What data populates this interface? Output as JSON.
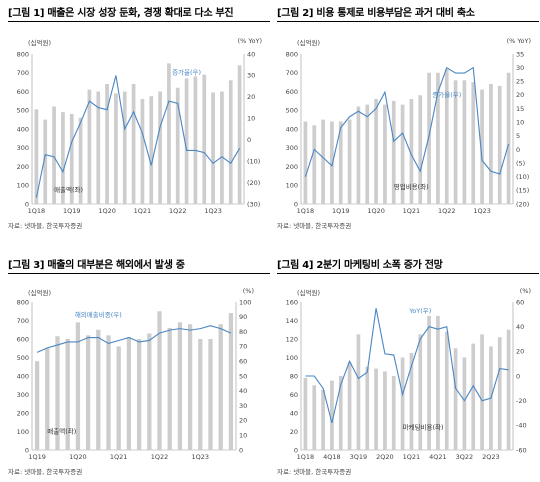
{
  "chart_data": [
    {
      "type": "bar",
      "title": "[그림 1] 매출은 시장 성장 둔화, 경쟁 확대로 다소 부진",
      "left_unit": "(십억원)",
      "right_unit": "(% YoY)",
      "categories": [
        "1Q18",
        "2Q18",
        "3Q18",
        "4Q18",
        "1Q19",
        "2Q19",
        "3Q19",
        "4Q19",
        "1Q20",
        "2Q20",
        "3Q20",
        "4Q20",
        "1Q21",
        "2Q21",
        "3Q21",
        "4Q21",
        "1Q22",
        "2Q22",
        "3Q22",
        "4Q22",
        "1Q23",
        "2Q23",
        "3Q23",
        "4Q23"
      ],
      "x_tick_labels": [
        "1Q18",
        "1Q19",
        "1Q20",
        "1Q21",
        "1Q22",
        "1Q23"
      ],
      "x_tick_index": [
        0,
        4,
        8,
        12,
        16,
        20
      ],
      "ylim_left": [
        0,
        800
      ],
      "yticks_left": [
        0,
        100,
        200,
        300,
        400,
        500,
        600,
        700,
        800
      ],
      "ylim_right": [
        -30,
        40
      ],
      "yticks_right_values": [
        -30,
        -20,
        -10,
        0,
        10,
        20,
        30,
        40
      ],
      "yticks_right_labels": [
        "(30)",
        "(20)",
        "(10)",
        "0",
        "10",
        "20",
        "30",
        "40"
      ],
      "series": [
        {
          "name": "매출액(좌)",
          "axis": "left",
          "kind": "bar",
          "values": [
            505,
            450,
            520,
            490,
            480,
            460,
            610,
            600,
            640,
            590,
            600,
            640,
            560,
            575,
            600,
            750,
            620,
            670,
            680,
            690,
            595,
            600,
            660,
            740
          ]
        },
        {
          "name": "증가율(우)",
          "axis": "right",
          "kind": "line",
          "values": [
            -27,
            -7,
            -8,
            -15,
            -1,
            8,
            18,
            15,
            14,
            30,
            5,
            13,
            3,
            -12,
            6,
            18,
            17,
            -5,
            -5,
            -6,
            -11,
            -8,
            -11,
            -4
          ]
        }
      ],
      "series_label_positions": {
        "bar": [
          2,
          65
        ],
        "line": [
          17,
          690
        ]
      },
      "source": "자료: 넷마블, 한국투자증권"
    },
    {
      "type": "bar",
      "title": "[그림 2] 비용 통제로 비용부담은 과거 대비 축소",
      "left_unit": "(십억원)",
      "right_unit": "(% YoY)",
      "categories": [
        "1Q18",
        "2Q18",
        "3Q18",
        "4Q18",
        "1Q19",
        "2Q19",
        "3Q19",
        "4Q19",
        "1Q20",
        "2Q20",
        "3Q20",
        "4Q20",
        "1Q21",
        "2Q21",
        "3Q21",
        "4Q21",
        "1Q22",
        "2Q22",
        "3Q22",
        "4Q22",
        "1Q23",
        "2Q23",
        "3Q23",
        "4Q23"
      ],
      "x_tick_labels": [
        "1Q18",
        "1Q19",
        "1Q20",
        "1Q21",
        "1Q22",
        "1Q23"
      ],
      "x_tick_index": [
        0,
        4,
        8,
        12,
        16,
        20
      ],
      "ylim_left": [
        0,
        800
      ],
      "yticks_left": [
        0,
        100,
        200,
        300,
        400,
        500,
        600,
        700,
        800
      ],
      "ylim_right": [
        -20,
        35
      ],
      "yticks_right_values": [
        -20,
        -15,
        -10,
        -5,
        0,
        5,
        10,
        15,
        20,
        25,
        30,
        35
      ],
      "yticks_right_labels": [
        "(20)",
        "(15)",
        "(10)",
        "(5)",
        "0",
        "5",
        "10",
        "15",
        "20",
        "25",
        "30",
        "35"
      ],
      "series": [
        {
          "name": "영업비용(좌)",
          "axis": "left",
          "kind": "bar",
          "values": [
            440,
            420,
            450,
            440,
            440,
            450,
            520,
            530,
            560,
            530,
            550,
            530,
            560,
            580,
            700,
            700,
            720,
            660,
            660,
            650,
            610,
            640,
            630,
            700
          ]
        },
        {
          "name": "증가율(우)",
          "axis": "right",
          "kind": "line",
          "values": [
            -10,
            0,
            -3,
            -6,
            8,
            12,
            14,
            12,
            15,
            21,
            3,
            6,
            -2,
            -8,
            5,
            21,
            30,
            28,
            28,
            30,
            -4,
            -8,
            -9,
            2
          ]
        }
      ],
      "series_label_positions": {
        "bar": [
          10,
          80
        ],
        "line": [
          16,
          570
        ]
      },
      "source": "자료: 넷마블, 한국투자증권"
    },
    {
      "type": "bar",
      "title": "[그림 3] 매출의 대부분은 해외에서 발생 중",
      "left_unit": "(십억원)",
      "right_unit": "(%)",
      "categories": [
        "1Q19",
        "2Q19",
        "3Q19",
        "4Q19",
        "1Q20",
        "2Q20",
        "3Q20",
        "4Q20",
        "1Q21",
        "2Q21",
        "3Q21",
        "4Q21",
        "1Q22",
        "2Q22",
        "3Q22",
        "4Q22",
        "1Q23",
        "2Q23",
        "3Q23",
        "4Q23"
      ],
      "x_tick_labels": [
        "1Q19",
        "1Q20",
        "1Q21",
        "1Q22",
        "1Q23"
      ],
      "x_tick_index": [
        0,
        4,
        8,
        12,
        16
      ],
      "ylim_left": [
        0,
        800
      ],
      "yticks_left": [
        0,
        100,
        200,
        300,
        400,
        500,
        600,
        700,
        800
      ],
      "ylim_right": [
        0,
        100
      ],
      "yticks_right_values": [
        0,
        10,
        20,
        30,
        40,
        50,
        60,
        70,
        80,
        90,
        100
      ],
      "yticks_right_labels": [
        "0",
        "10",
        "20",
        "30",
        "40",
        "50",
        "60",
        "70",
        "80",
        "90",
        "100"
      ],
      "series": [
        {
          "name": "매출액(좌)",
          "axis": "left",
          "kind": "bar",
          "values": [
            480,
            550,
            615,
            600,
            690,
            620,
            650,
            620,
            560,
            610,
            600,
            630,
            750,
            660,
            690,
            680,
            600,
            600,
            680,
            740
          ]
        },
        {
          "name": "해외매출비중(우)",
          "axis": "right",
          "kind": "line",
          "values": [
            66,
            69,
            71,
            73,
            73,
            76,
            76,
            72,
            74,
            76,
            73,
            74,
            79,
            81,
            82,
            81,
            82,
            84,
            82,
            79
          ]
        }
      ],
      "series_label_positions": {
        "bar": [
          1,
          90
        ],
        "line": [
          6,
          720
        ]
      },
      "source": "자료: 넷마블, 한국투자증권"
    },
    {
      "type": "bar",
      "title": "[그림 4] 2분기 마케팅비 소폭 증가 전망",
      "left_unit": "(십억원)",
      "right_unit": "(%)",
      "categories": [
        "1Q18",
        "2Q18",
        "3Q18",
        "4Q18",
        "1Q19",
        "2Q19",
        "3Q19",
        "4Q19",
        "1Q20",
        "2Q20",
        "3Q20",
        "4Q20",
        "1Q21",
        "2Q21",
        "3Q21",
        "4Q21",
        "1Q22",
        "2Q22",
        "3Q22",
        "4Q22",
        "1Q23",
        "2Q23",
        "3Q23",
        "4Q23"
      ],
      "x_tick_labels": [
        "1Q18",
        "4Q18",
        "3Q19",
        "2Q20",
        "1Q21",
        "4Q21",
        "3Q22",
        "2Q23"
      ],
      "x_tick_index": [
        0,
        3,
        6,
        9,
        12,
        15,
        18,
        21
      ],
      "ylim_left": [
        0,
        160
      ],
      "yticks_left": [
        0,
        20,
        40,
        60,
        80,
        100,
        120,
        140,
        160
      ],
      "ylim_right": [
        -60,
        60
      ],
      "yticks_right_values": [
        -60,
        -40,
        -20,
        0,
        20,
        40,
        60
      ],
      "yticks_right_labels": [
        "-60",
        "-40",
        "-20",
        "0",
        "20",
        "40",
        "60"
      ],
      "series": [
        {
          "name": "마케팅비용(좌)",
          "axis": "left",
          "kind": "bar",
          "values": [
            78,
            70,
            65,
            75,
            80,
            95,
            125,
            90,
            88,
            85,
            80,
            100,
            105,
            125,
            145,
            145,
            128,
            110,
            100,
            115,
            125,
            112,
            122,
            130
          ]
        },
        {
          "name": "YoY(우)",
          "axis": "right",
          "kind": "line",
          "values": [
            0,
            0,
            -10,
            -38,
            -7,
            12,
            -2,
            3,
            55,
            18,
            17,
            -15,
            8,
            30,
            40,
            38,
            40,
            -10,
            -20,
            -8,
            -20,
            -18,
            6,
            5
          ]
        }
      ],
      "series_label_positions": {
        "bar": [
          11,
          22
        ],
        "line": [
          13,
          148
        ]
      },
      "source": "자료: 넷마블, 한국투자증권"
    }
  ],
  "colors": {
    "bar": "#cdcdcd",
    "line": "#4a86c5",
    "line_label": "#4a86c5",
    "axis_text": "#444444"
  }
}
